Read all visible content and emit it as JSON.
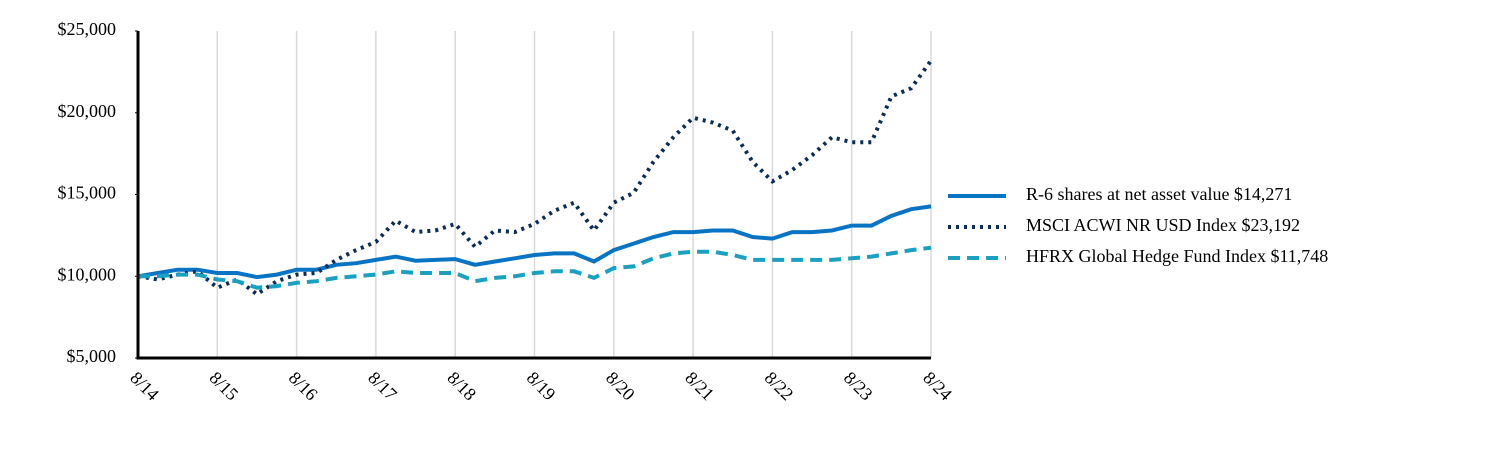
{
  "chart_data": {
    "type": "line",
    "categories": [
      "8/14",
      null,
      null,
      null,
      "8/15",
      null,
      null,
      null,
      "8/16",
      null,
      null,
      null,
      "8/17",
      null,
      null,
      null,
      "8/18",
      null,
      null,
      null,
      "8/19",
      null,
      null,
      null,
      "8/20",
      null,
      null,
      null,
      "8/21",
      null,
      null,
      null,
      "8/22",
      null,
      null,
      null,
      "8/23",
      null,
      null,
      null,
      "8/24"
    ],
    "series": [
      {
        "name": "R-6 shares at net asset value $14,271",
        "color": "#0a74c4",
        "style": "solid",
        "values": [
          10000,
          10200,
          10400,
          10400,
          10200,
          10200,
          9950,
          10100,
          10400,
          10400,
          10700,
          10800,
          11000,
          11200,
          10950,
          11000,
          11050,
          10700,
          10900,
          11100,
          11300,
          11400,
          11400,
          10900,
          11600,
          12000,
          12400,
          12700,
          12700,
          12800,
          12800,
          12400,
          12300,
          12700,
          12700,
          12800,
          13100,
          13100,
          13700,
          14100,
          14271
        ]
      },
      {
        "name": "MSCI ACWI NR USD Index $23,192",
        "color": "#0b2d55",
        "style": "dotted",
        "values": [
          10000,
          9800,
          10100,
          10300,
          9300,
          9800,
          8900,
          9700,
          10100,
          10200,
          11000,
          11600,
          12100,
          13400,
          12700,
          12800,
          13200,
          11800,
          12800,
          12700,
          13200,
          14000,
          14500,
          12800,
          14500,
          15100,
          17000,
          18500,
          19700,
          19400,
          18900,
          17000,
          15800,
          16500,
          17400,
          18500,
          18200,
          18200,
          21000,
          21500,
          23192
        ]
      },
      {
        "name": "HFRX Global Hedge Fund Index $11,748",
        "color": "#1aa0c0",
        "style": "dashed",
        "values": [
          10000,
          10000,
          10100,
          10100,
          9800,
          9700,
          9300,
          9400,
          9600,
          9700,
          9900,
          10000,
          10100,
          10300,
          10200,
          10200,
          10200,
          9700,
          9900,
          10000,
          10200,
          10300,
          10300,
          9900,
          10500,
          10600,
          11100,
          11400,
          11500,
          11500,
          11300,
          11000,
          11000,
          11000,
          11000,
          11000,
          11100,
          11200,
          11400,
          11600,
          11748
        ]
      }
    ],
    "ylim": [
      5000,
      25000
    ],
    "yticks": [
      {
        "value": 5000,
        "label": "$5,000"
      },
      {
        "value": 10000,
        "label": "$10,000"
      },
      {
        "value": 15000,
        "label": "$15,000"
      },
      {
        "value": 20000,
        "label": "$20,000"
      },
      {
        "value": 25000,
        "label": "$25,000"
      }
    ],
    "grid": true,
    "legend": "right"
  }
}
